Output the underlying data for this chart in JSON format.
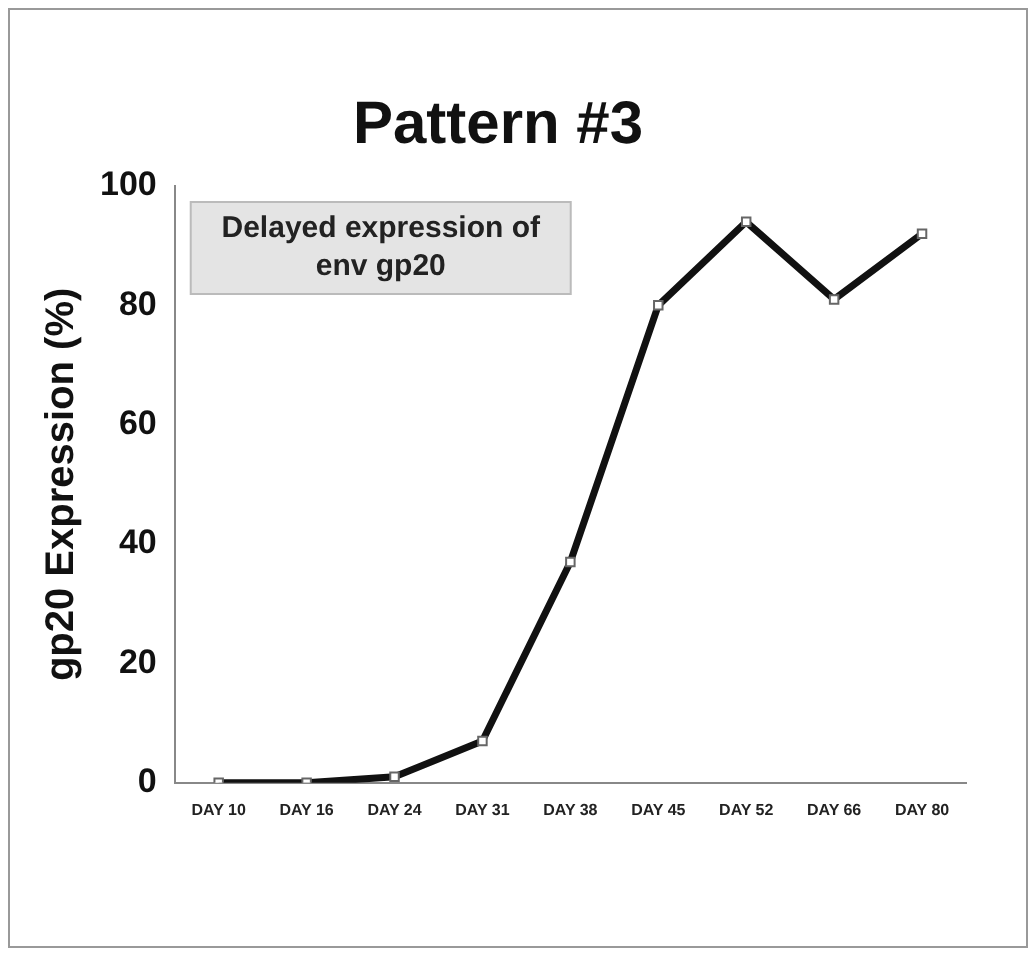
{
  "chart_data": {
    "type": "line",
    "title": "Pattern #3",
    "ylabel": "gp20 Expression (%)",
    "categories": [
      "DAY 10",
      "DAY 16",
      "DAY 24",
      "DAY 31",
      "DAY 38",
      "DAY 45",
      "DAY 52",
      "DAY 66",
      "DAY 80"
    ],
    "series": [
      {
        "color": "#111111",
        "values": [
          0,
          0,
          1,
          7,
          37,
          80,
          94,
          81,
          92
        ]
      }
    ],
    "ylim": [
      0,
      100
    ],
    "yticks": [
      0,
      20,
      40,
      60,
      80,
      100
    ],
    "grid": false,
    "legend": false,
    "marker": "square",
    "line_style": "solid",
    "annotations": [
      "Delayed expression of env gp20"
    ]
  }
}
